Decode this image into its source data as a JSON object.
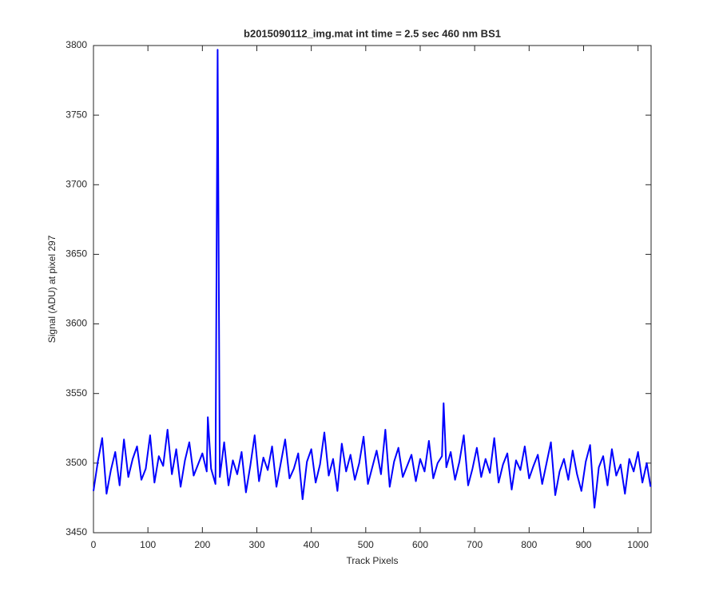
{
  "chart_data": {
    "type": "line",
    "title": "b2015090112_img.mat int time = 2.5 sec  460 nm BS1",
    "x_label": "Track Pixels",
    "y_label": "Signal (ADU) at pixel 297",
    "xlim": [
      0,
      1024
    ],
    "ylim": [
      3450,
      3800
    ],
    "xticks": [
      0,
      100,
      200,
      300,
      400,
      500,
      600,
      700,
      800,
      900,
      1000
    ],
    "yticks": [
      3450,
      3500,
      3550,
      3600,
      3650,
      3700,
      3750,
      3800
    ],
    "grid": false,
    "x": [
      0,
      8,
      16,
      24,
      32,
      40,
      48,
      56,
      64,
      72,
      80,
      88,
      96,
      104,
      112,
      120,
      128,
      136,
      144,
      152,
      160,
      168,
      176,
      184,
      192,
      200,
      208,
      210,
      216,
      224,
      228,
      232,
      240,
      248,
      256,
      264,
      272,
      280,
      288,
      296,
      304,
      312,
      320,
      328,
      336,
      344,
      352,
      360,
      368,
      376,
      384,
      392,
      400,
      408,
      416,
      424,
      432,
      440,
      448,
      456,
      464,
      472,
      480,
      488,
      496,
      504,
      512,
      520,
      528,
      536,
      544,
      552,
      560,
      568,
      576,
      584,
      592,
      600,
      608,
      616,
      624,
      632,
      640,
      643,
      648,
      656,
      664,
      672,
      680,
      688,
      696,
      704,
      712,
      720,
      728,
      736,
      744,
      752,
      760,
      768,
      776,
      784,
      792,
      800,
      808,
      816,
      824,
      832,
      840,
      848,
      856,
      864,
      872,
      880,
      888,
      896,
      904,
      912,
      920,
      928,
      936,
      944,
      952,
      960,
      968,
      976,
      984,
      992,
      1000,
      1008,
      1016,
      1023
    ],
    "series": [
      {
        "color": "#0000ff",
        "values": [
          3480,
          3501,
          3518,
          3478,
          3495,
          3508,
          3484,
          3517,
          3490,
          3503,
          3512,
          3488,
          3496,
          3520,
          3486,
          3505,
          3498,
          3524,
          3492,
          3510,
          3483,
          3502,
          3515,
          3491,
          3499,
          3507,
          3494,
          3533,
          3496,
          3485,
          3797,
          3490,
          3515,
          3484,
          3502,
          3492,
          3508,
          3479,
          3498,
          3520,
          3487,
          3504,
          3495,
          3512,
          3483,
          3500,
          3517,
          3489,
          3496,
          3507,
          3474,
          3501,
          3510,
          3486,
          3499,
          3522,
          3491,
          3503,
          3480,
          3514,
          3494,
          3506,
          3488,
          3500,
          3519,
          3485,
          3497,
          3509,
          3492,
          3524,
          3483,
          3501,
          3511,
          3490,
          3498,
          3506,
          3487,
          3503,
          3494,
          3516,
          3489,
          3500,
          3505,
          3543,
          3497,
          3508,
          3488,
          3501,
          3520,
          3484,
          3496,
          3511,
          3490,
          3503,
          3493,
          3518,
          3486,
          3499,
          3507,
          3481,
          3502,
          3495,
          3512,
          3489,
          3498,
          3506,
          3485,
          3500,
          3515,
          3477,
          3494,
          3503,
          3488,
          3509,
          3492,
          3480,
          3501,
          3513,
          3468,
          3497,
          3505,
          3484,
          3510,
          3491,
          3499,
          3478,
          3503,
          3494,
          3508,
          3486,
          3500,
          3483
        ]
      }
    ]
  }
}
